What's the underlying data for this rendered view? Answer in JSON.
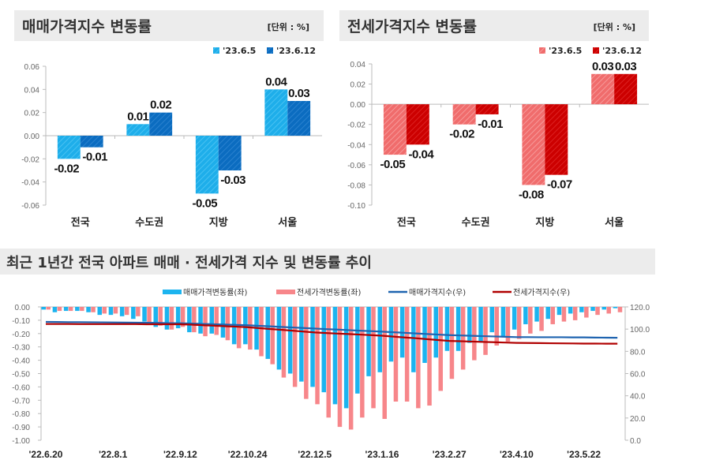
{
  "chart_data": [
    {
      "type": "bar",
      "title": "매매가격지수 변동률",
      "unit": "[단위 : %]",
      "categories": [
        "전국",
        "수도권",
        "지방",
        "서울"
      ],
      "series": [
        {
          "name": "'23.6.5",
          "values": [
            -0.02,
            0.01,
            -0.05,
            0.04
          ],
          "color": "#1eaeea"
        },
        {
          "name": "'23.6.12",
          "values": [
            -0.01,
            0.02,
            -0.03,
            0.03
          ],
          "color": "#0b6cc0"
        }
      ],
      "ylim": [
        -0.06,
        0.06
      ],
      "yticks": [
        "0.06",
        "0.04",
        "0.02",
        "0.00",
        "-0.02",
        "-0.04",
        "-0.06"
      ],
      "legend": "top-right"
    },
    {
      "type": "bar",
      "title": "전세가격지수 변동률",
      "unit": "[단위 : %]",
      "categories": [
        "전국",
        "수도권",
        "지방",
        "서울"
      ],
      "series": [
        {
          "name": "'23.6.5",
          "values": [
            -0.05,
            -0.02,
            -0.08,
            0.03
          ],
          "color": "#f06c6c"
        },
        {
          "name": "'23.6.12",
          "values": [
            -0.04,
            -0.01,
            -0.07,
            0.03
          ],
          "color": "#cc0000"
        }
      ],
      "ylim": [
        -0.1,
        0.04
      ],
      "yticks": [
        "0.04",
        "0.02",
        "0.00",
        "-0.02",
        "-0.04",
        "-0.06",
        "-0.08",
        "-0.10"
      ],
      "legend": "top-right"
    },
    {
      "type": "bar+line",
      "title": "최근 1년간 전국 아파트 매매 · 전세가격 지수 및 변동률 추이",
      "x_tick_labels": [
        "'22.6.20",
        "'22.8.1",
        "'22.9.12",
        "'22.10.24",
        "'22.12.5",
        "'23.1.16",
        "'23.2.27",
        "'23.4.10",
        "'23.5.22"
      ],
      "x_tick_every_weeks": 6,
      "y_left": {
        "ylim": [
          -1.0,
          0.0
        ],
        "ticks": [
          "0.00",
          "-0.10",
          "-0.20",
          "-0.30",
          "-0.40",
          "-0.50",
          "-0.60",
          "-0.70",
          "-0.80",
          "-0.90",
          "-1.00"
        ]
      },
      "y_right": {
        "ylim": [
          0,
          120
        ],
        "ticks": [
          "120.0",
          "100.0",
          "80.0",
          "60.0",
          "40.0",
          "20.0",
          "0.0"
        ]
      },
      "legend": "top",
      "series": [
        {
          "name": "매매가격변동률(좌)",
          "kind": "bar",
          "axis": "left",
          "color": "#1cb4ef",
          "values": [
            -0.02,
            -0.04,
            -0.03,
            -0.03,
            -0.04,
            -0.06,
            -0.06,
            -0.07,
            -0.09,
            -0.11,
            -0.15,
            -0.17,
            -0.16,
            -0.19,
            -0.2,
            -0.2,
            -0.23,
            -0.28,
            -0.28,
            -0.32,
            -0.39,
            -0.47,
            -0.5,
            -0.56,
            -0.6,
            -0.64,
            -0.73,
            -0.76,
            -0.65,
            -0.52,
            -0.49,
            -0.41,
            -0.38,
            -0.49,
            -0.42,
            -0.38,
            -0.33,
            -0.33,
            -0.27,
            -0.26,
            -0.19,
            -0.22,
            -0.17,
            -0.13,
            -0.11,
            -0.09,
            -0.06,
            -0.05,
            -0.04,
            -0.03,
            -0.02,
            -0.01
          ]
        },
        {
          "name": "전세가격변동률(좌)",
          "kind": "bar",
          "axis": "left",
          "color": "#f7868a",
          "values": [
            -0.02,
            -0.03,
            -0.03,
            -0.03,
            -0.04,
            -0.05,
            -0.05,
            -0.06,
            -0.07,
            -0.12,
            -0.14,
            -0.17,
            -0.15,
            -0.19,
            -0.22,
            -0.21,
            -0.25,
            -0.31,
            -0.32,
            -0.37,
            -0.43,
            -0.53,
            -0.6,
            -0.69,
            -0.73,
            -0.83,
            -0.9,
            -0.92,
            -0.83,
            -0.76,
            -0.84,
            -0.71,
            -0.71,
            -0.76,
            -0.74,
            -0.63,
            -0.54,
            -0.47,
            -0.4,
            -0.36,
            -0.29,
            -0.26,
            -0.24,
            -0.2,
            -0.18,
            -0.13,
            -0.11,
            -0.1,
            -0.08,
            -0.06,
            -0.05,
            -0.04
          ]
        },
        {
          "name": "매매가격지수(우)",
          "kind": "line",
          "axis": "right",
          "color": "#1f64b0",
          "values": [
            106.5,
            106.4,
            106.3,
            106.3,
            106.2,
            106.1,
            106.0,
            105.9,
            105.8,
            105.7,
            105.6,
            105.4,
            105.3,
            105.0,
            104.7,
            104.4,
            104.1,
            103.8,
            103.5,
            103.0,
            102.5,
            102.0,
            101.5,
            101.0,
            100.5,
            100.0,
            99.6,
            99.1,
            98.6,
            98.2,
            97.7,
            97.2,
            96.7,
            96.1,
            95.6,
            95.1,
            94.6,
            94.3,
            94.0,
            93.7,
            93.4,
            93.1,
            92.8,
            92.8,
            92.7,
            92.7,
            92.7,
            92.6,
            92.6,
            92.4,
            92.3,
            92.2
          ]
        },
        {
          "name": "전세가격지수(우)",
          "kind": "line",
          "axis": "right",
          "color": "#b00000",
          "values": [
            104.6,
            104.6,
            104.6,
            104.5,
            104.5,
            104.5,
            104.5,
            104.5,
            104.5,
            104.4,
            104.4,
            104.4,
            104.4,
            104.0,
            103.5,
            103.1,
            102.6,
            102.2,
            101.7,
            100.9,
            100.1,
            99.4,
            98.6,
            97.8,
            97.0,
            96.5,
            96.0,
            95.6,
            95.1,
            94.6,
            94.1,
            93.3,
            92.5,
            91.8,
            91.0,
            90.2,
            89.4,
            89.1,
            88.8,
            88.5,
            88.2,
            87.9,
            87.6,
            87.5,
            87.4,
            87.3,
            87.2,
            87.1,
            87.0,
            87.0,
            86.9,
            86.9
          ]
        }
      ]
    }
  ]
}
